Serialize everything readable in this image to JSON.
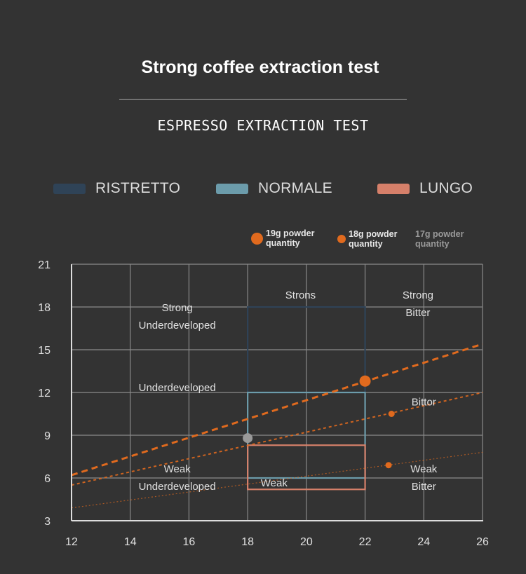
{
  "header": {
    "title": "Strong coffee extraction test",
    "subtitle": "ESPRESSO EXTRACTION TEST"
  },
  "legend": [
    {
      "label": "RISTRETTO",
      "color": "#2f4357"
    },
    {
      "label": "NORMALE",
      "color": "#6c9cab"
    },
    {
      "label": "LUNGO",
      "color": "#d6806a"
    }
  ],
  "powder_legend": [
    {
      "line1": "19g powder",
      "line2": "quantity",
      "marker": "large"
    },
    {
      "line1": "18g powder",
      "line2": "quantity",
      "marker": "small"
    },
    {
      "line1": "17g powder",
      "line2": "quantity",
      "marker": "none"
    }
  ],
  "colors": {
    "background": "#333333",
    "grid": "#8a8a8a",
    "axis": "#dddddd",
    "trend": "#e06a1e",
    "ristretto": "#2f4357",
    "normale": "#6c9cab",
    "lungo": "#d6806a",
    "gray_marker": "#9a9a9a"
  },
  "chart_data": {
    "type": "line",
    "xlim": [
      12,
      26
    ],
    "ylim": [
      3,
      21
    ],
    "x_ticks": [
      12,
      14,
      16,
      18,
      20,
      22,
      24,
      26
    ],
    "y_ticks": [
      3,
      6,
      9,
      12,
      15,
      18,
      21
    ],
    "grid": true,
    "series": [
      {
        "name": "19g powder quantity",
        "style": "dashed-thick",
        "points": [
          [
            12,
            6.2
          ],
          [
            26,
            15.4
          ]
        ]
      },
      {
        "name": "18g powder quantity",
        "style": "dotted",
        "points": [
          [
            12,
            5.5
          ],
          [
            26,
            12.0
          ]
        ]
      },
      {
        "name": "17g powder quantity",
        "style": "dotted-thin",
        "points": [
          [
            12,
            3.9
          ],
          [
            26,
            7.8
          ]
        ]
      }
    ],
    "markers": [
      {
        "x": 22,
        "y": 12.8,
        "size": "large",
        "color": "#e06a1e"
      },
      {
        "x": 22.9,
        "y": 10.5,
        "size": "small",
        "color": "#e06a1e"
      },
      {
        "x": 22.8,
        "y": 6.9,
        "size": "small",
        "color": "#e06a1e"
      },
      {
        "x": 18,
        "y": 8.8,
        "size": "medium",
        "color": "#9a9a9a"
      }
    ],
    "regions": [
      {
        "name": "RISTRETTO",
        "x": [
          18,
          22
        ],
        "y": [
          12,
          18
        ],
        "color": "#2f4357"
      },
      {
        "name": "NORMALE",
        "x": [
          18,
          22
        ],
        "y": [
          6,
          12
        ],
        "color": "#6c9cab"
      },
      {
        "name": "LUNGO",
        "x": [
          18,
          22
        ],
        "y": [
          5.2,
          8.3
        ],
        "color": "#d6806a"
      }
    ],
    "zone_labels": [
      {
        "lines": [
          "Strong",
          "Underdeveloped"
        ],
        "x": 15.6,
        "y": 17.7
      },
      {
        "lines": [
          "Strons"
        ],
        "x": 19.8,
        "y": 18.6
      },
      {
        "lines": [
          "Strong",
          "Bitter"
        ],
        "x": 23.8,
        "y": 18.6
      },
      {
        "lines": [
          "Underdeveloped"
        ],
        "x": 15.6,
        "y": 12.1
      },
      {
        "lines": [
          "Bittor"
        ],
        "x": 24.0,
        "y": 11.1
      },
      {
        "lines": [
          "Weak",
          "Underdeveloped"
        ],
        "x": 15.6,
        "y": 6.4
      },
      {
        "lines": [
          "Weak"
        ],
        "x": 18.9,
        "y": 5.4
      },
      {
        "lines": [
          "Weak",
          "Bitter"
        ],
        "x": 24.0,
        "y": 6.4
      }
    ]
  }
}
